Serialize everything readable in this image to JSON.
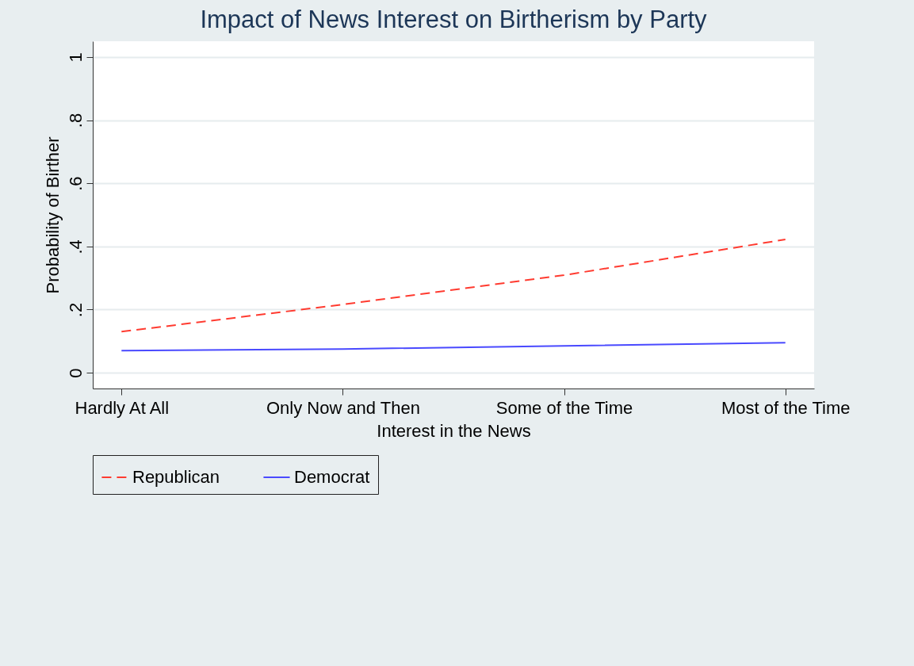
{
  "chart_data": {
    "type": "line",
    "title": "Impact of News Interest on Birtherism by Party",
    "xlabel": "Interest in the News",
    "ylabel": "Probability of Birther",
    "categories": [
      "Hardly At All",
      "Only Now and Then",
      "Some of the Time",
      "Most of the Time"
    ],
    "series": [
      {
        "name": "Republican",
        "color": "#ff3b30",
        "line_style": "dashed",
        "values": [
          0.13,
          0.216,
          0.309,
          0.422
        ]
      },
      {
        "name": "Democrat",
        "color": "#4a4aff",
        "line_style": "solid",
        "values": [
          0.07,
          0.075,
          0.085,
          0.095
        ]
      }
    ],
    "ylim": [
      -0.05,
      1.05
    ],
    "yticks": [
      {
        "value": 0,
        "label": "0"
      },
      {
        "value": 0.2,
        "label": ".2"
      },
      {
        "value": 0.4,
        "label": ".4"
      },
      {
        "value": 0.6,
        "label": ".6"
      },
      {
        "value": 0.8,
        "label": ".8"
      },
      {
        "value": 1,
        "label": "1"
      }
    ],
    "grid": "y",
    "legend": "bottom",
    "marker": "none"
  }
}
